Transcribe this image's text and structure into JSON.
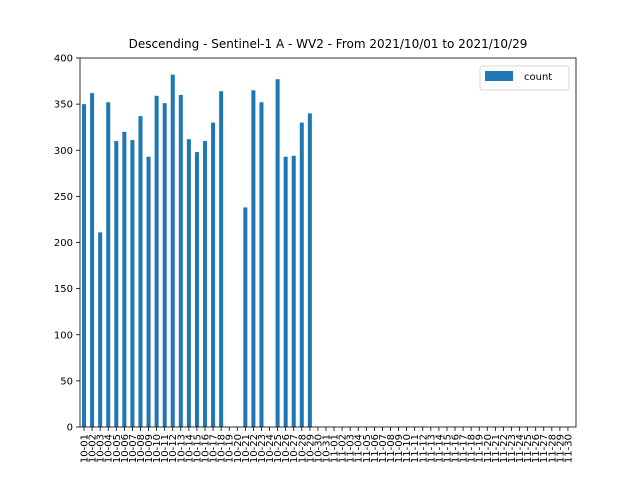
{
  "chart_data": {
    "type": "bar",
    "title": "Descending - Sentinel-1 A - WV2 - From 2021/10/01 to 2021/10/29",
    "xlabel": "",
    "ylabel": "",
    "ylim": [
      0,
      400
    ],
    "yticks": [
      0,
      50,
      100,
      150,
      200,
      250,
      300,
      350,
      400
    ],
    "grid": false,
    "legend_position": "top-right",
    "colors": {
      "bar": "#1f77b4",
      "axis": "#000000",
      "background": "#ffffff"
    },
    "categories": [
      "10-01",
      "10-02",
      "10-03",
      "10-04",
      "10-05",
      "10-06",
      "10-07",
      "10-08",
      "10-09",
      "10-10",
      "10-11",
      "10-12",
      "10-13",
      "10-14",
      "10-15",
      "10-16",
      "10-17",
      "10-18",
      "10-19",
      "10-20",
      "10-21",
      "10-22",
      "10-23",
      "10-24",
      "10-25",
      "10-26",
      "10-27",
      "10-28",
      "10-29",
      "10-30",
      "10-31",
      "11-01",
      "11-02",
      "11-03",
      "11-04",
      "11-05",
      "11-06",
      "11-07",
      "11-08",
      "11-09",
      "11-10",
      "11-11",
      "11-12",
      "11-13",
      "11-14",
      "11-15",
      "11-16",
      "11-17",
      "11-18",
      "11-19",
      "11-20",
      "11-21",
      "11-22",
      "11-23",
      "11-24",
      "11-25",
      "11-26",
      "11-27",
      "11-28",
      "11-29",
      "11-30"
    ],
    "series": [
      {
        "name": "count",
        "values": [
          350,
          362,
          211,
          352,
          310,
          320,
          311,
          337,
          293,
          359,
          351,
          382,
          360,
          312,
          298,
          310,
          330,
          364,
          0,
          0,
          238,
          365,
          352,
          0,
          377,
          293,
          294,
          330,
          340,
          0,
          0,
          0,
          0,
          0,
          0,
          0,
          0,
          0,
          0,
          0,
          0,
          0,
          0,
          0,
          0,
          0,
          0,
          0,
          0,
          0,
          0,
          0,
          0,
          0,
          0,
          0,
          0,
          0,
          0,
          0,
          0
        ]
      }
    ]
  }
}
